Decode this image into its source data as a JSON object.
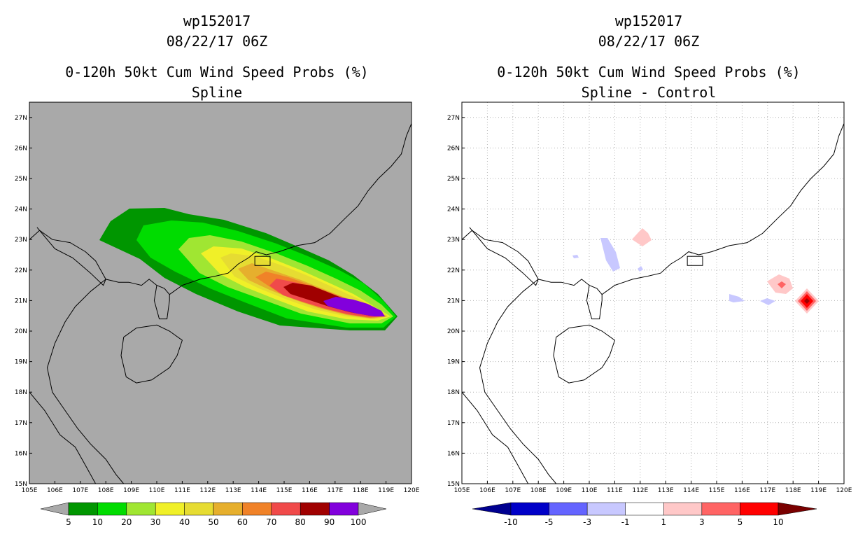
{
  "left": {
    "title1": "wp152017",
    "title2": "08/22/17 06Z",
    "title3": "0-120h 50kt Cum Wind Speed Probs (%)",
    "title4": "Spline",
    "background": "#a9a9a9",
    "colorbar": {
      "colors": [
        "#009600",
        "#00dc00",
        "#a0e632",
        "#f0f028",
        "#e6dc32",
        "#e6af2d",
        "#f08228",
        "#f04a4a",
        "#a00000",
        "#8200dc"
      ],
      "labels": [
        "5",
        "10",
        "20",
        "30",
        "40",
        "50",
        "60",
        "70",
        "80",
        "90",
        "100"
      ]
    }
  },
  "right": {
    "title1": "wp152017",
    "title2": "08/22/17 06Z",
    "title3": "0-120h 50kt Cum Wind Speed Probs (%)",
    "title4": "Spline - Control",
    "background": "#ffffff",
    "colorbar": {
      "colors": [
        "#0000c8",
        "#6464ff",
        "#c8c8ff",
        "#ffffff",
        "#ffc8c8",
        "#ff6464",
        "#ff0000"
      ],
      "end_colors": [
        "#000090",
        "#7a0000"
      ],
      "labels": [
        "-10",
        "-5",
        "-3",
        "-1",
        "1",
        "3",
        "5",
        "10"
      ]
    }
  },
  "axes": {
    "lon_labels": [
      "105E",
      "106E",
      "107E",
      "108E",
      "109E",
      "110E",
      "111E",
      "112E",
      "113E",
      "114E",
      "115E",
      "116E",
      "117E",
      "118E",
      "119E",
      "120E"
    ],
    "lat_labels": [
      "15N",
      "16N",
      "17N",
      "18N",
      "19N",
      "20N",
      "21N",
      "22N",
      "23N",
      "24N",
      "25N",
      "26N",
      "27N"
    ],
    "lon_range": [
      105,
      120
    ],
    "lat_range": [
      15,
      27.5
    ]
  }
}
